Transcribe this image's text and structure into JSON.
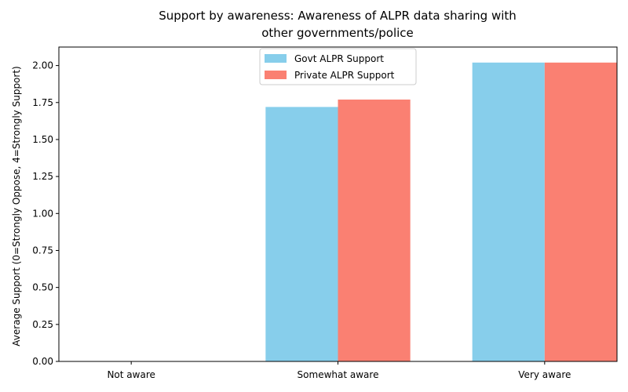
{
  "chart_data": {
    "type": "bar",
    "title": [
      "Support by awareness: Awareness of ALPR data sharing with",
      "other governments/police"
    ],
    "xlabel": "",
    "ylabel": "Average Support (0=Strongly Oppose, 4=Strongly Support)",
    "categories": [
      "Not aware",
      "Somewhat aware",
      "Very aware"
    ],
    "series": [
      {
        "name": "Govt ALPR Support",
        "color": "#87CEEB",
        "values": [
          null,
          1.72,
          2.02
        ]
      },
      {
        "name": "Private ALPR Support",
        "color": "#FA8072",
        "values": [
          null,
          1.77,
          2.02
        ]
      }
    ],
    "ylim": [
      0,
      2.125
    ],
    "yticks": [
      0.0,
      0.25,
      0.5,
      0.75,
      1.0,
      1.25,
      1.5,
      1.75,
      2.0
    ],
    "yticklabels": [
      "0.00",
      "0.25",
      "0.50",
      "0.75",
      "1.00",
      "1.25",
      "1.50",
      "1.75",
      "2.00"
    ],
    "legend": "top-center",
    "grid": false
  }
}
